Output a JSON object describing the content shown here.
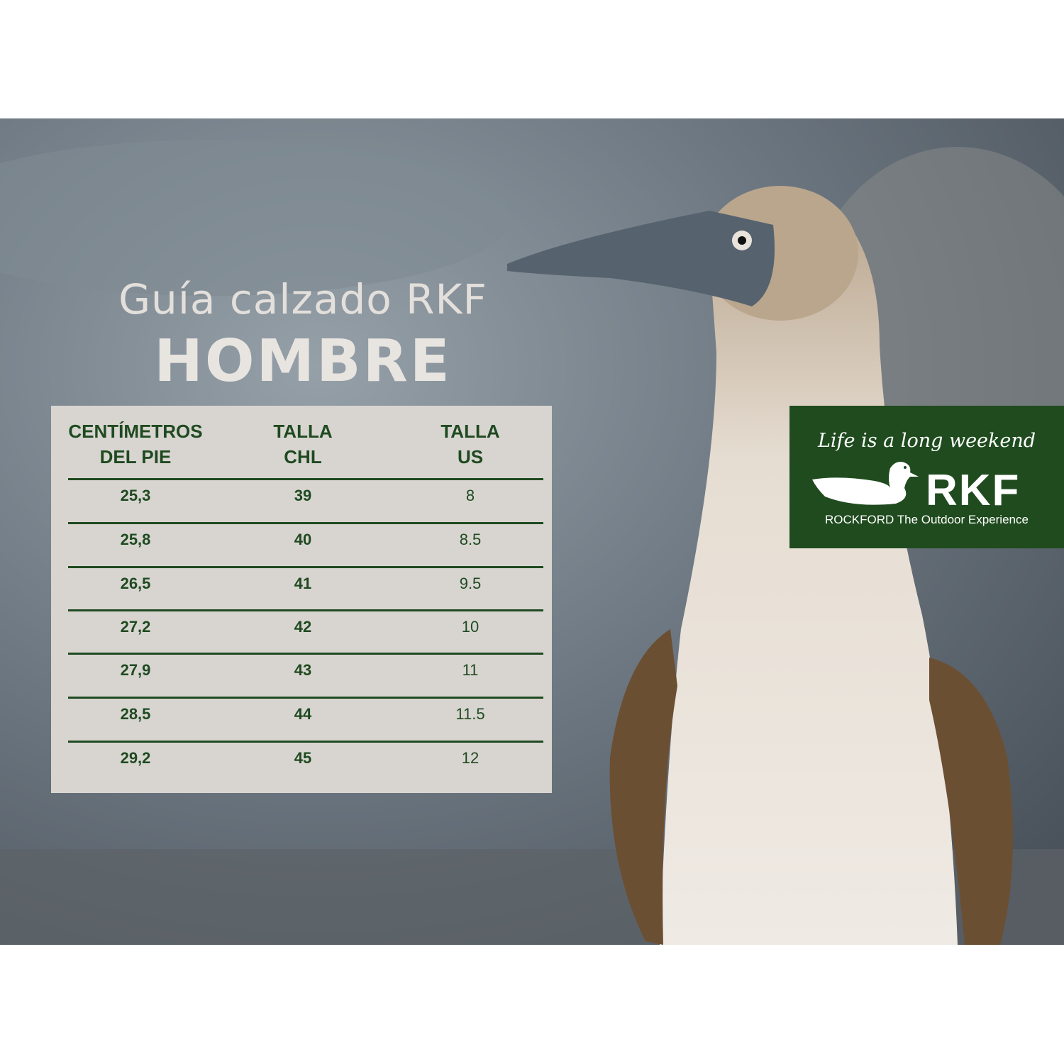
{
  "title": {
    "line1": "Guía calzado RKF",
    "line2": "HOMBRE"
  },
  "table": {
    "headers": [
      {
        "line1": "CENTÍMETROS",
        "line2": "DEL PIE"
      },
      {
        "line1": "TALLA",
        "line2": "CHL"
      },
      {
        "line1": "TALLA",
        "line2": "US"
      }
    ],
    "rows": [
      [
        "25,3",
        "39",
        "8"
      ],
      [
        "25,8",
        "40",
        "8.5"
      ],
      [
        "26,5",
        "41",
        "9.5"
      ],
      [
        "27,2",
        "42",
        "10"
      ],
      [
        "27,9",
        "43",
        "11"
      ],
      [
        "28,5",
        "44",
        "11.5"
      ],
      [
        "29,2",
        "45",
        "12"
      ]
    ]
  },
  "logo": {
    "tagline": "Life is a long weekend",
    "brand": "RKF",
    "subtitle": "ROCKFORD The Outdoor Experience"
  },
  "colors": {
    "brand_green": "#1f4b1e",
    "table_bg": "#d8d5d1",
    "text_green": "#1f4a20"
  }
}
